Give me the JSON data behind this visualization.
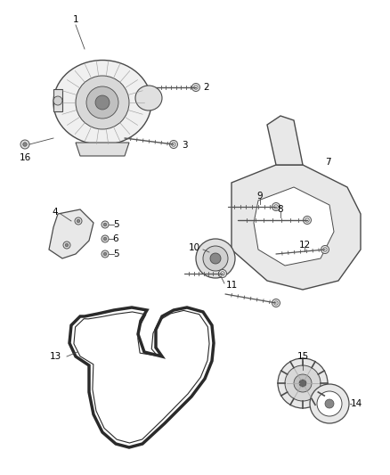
{
  "bg_color": "#ffffff",
  "line_color": "#4a4a4a",
  "label_color": "#000000",
  "fig_width": 4.38,
  "fig_height": 5.33,
  "dpi": 100
}
